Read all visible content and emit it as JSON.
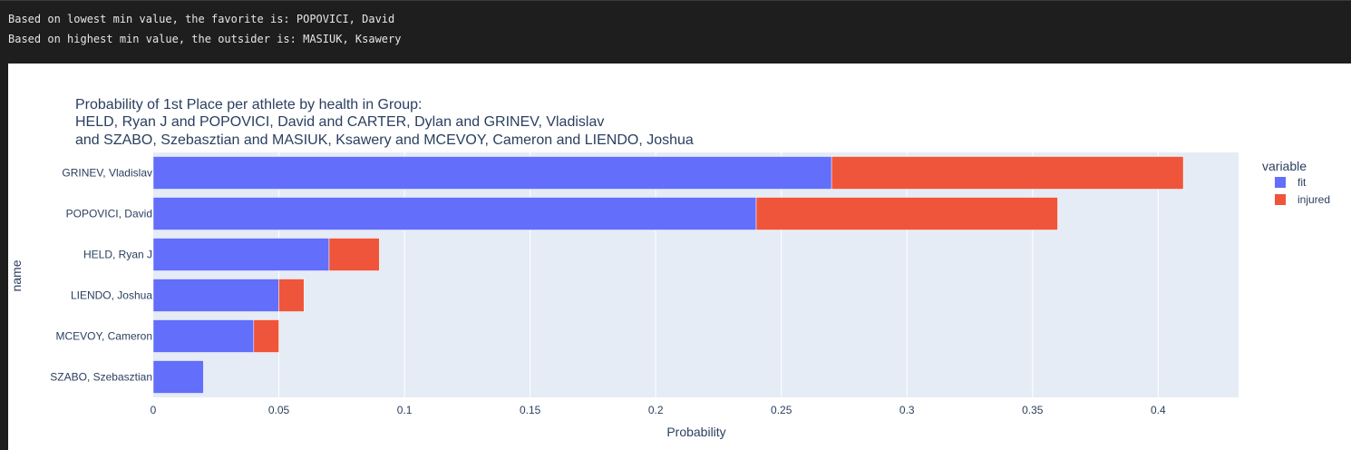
{
  "console": {
    "lines": [
      "Based on lowest min value, the favorite is: POPOVICI, David",
      "Based on highest min value, the outsider is: MASIUK, Ksawery"
    ]
  },
  "chart_data": {
    "type": "bar",
    "orientation": "horizontal",
    "barmode": "stack",
    "title_lines": [
      "Probability of 1st Place per athlete by health in Group:",
      "HELD, Ryan J and POPOVICI, David and CARTER, Dylan and GRINEV, Vladislav",
      "and SZABO, Szebasztian and MASIUK, Ksawery and MCEVOY, Cameron and LIENDO, Joshua"
    ],
    "xlabel": "Probability",
    "ylabel": "name",
    "xlim": [
      0,
      0.432
    ],
    "xticks": [
      0,
      0.05,
      0.1,
      0.15,
      0.2,
      0.25,
      0.3,
      0.35,
      0.4
    ],
    "xtick_labels": [
      "0",
      "0.05",
      "0.1",
      "0.15",
      "0.2",
      "0.25",
      "0.3",
      "0.35",
      "0.4"
    ],
    "categories": [
      "GRINEV, Vladislav",
      "POPOVICI, David",
      "HELD, Ryan J",
      "LIENDO, Joshua",
      "MCEVOY, Cameron",
      "SZABO, Szebasztian"
    ],
    "series": [
      {
        "name": "fit",
        "color": "#636efa",
        "values": [
          0.27,
          0.24,
          0.07,
          0.05,
          0.04,
          0.02
        ]
      },
      {
        "name": "injured",
        "color": "#ef553b",
        "values": [
          0.14,
          0.12,
          0.02,
          0.01,
          0.01,
          0
        ]
      }
    ],
    "legend_title": "variable",
    "legend_position": "top-right",
    "grid": true,
    "plot_bg": "#e5ecf6"
  }
}
